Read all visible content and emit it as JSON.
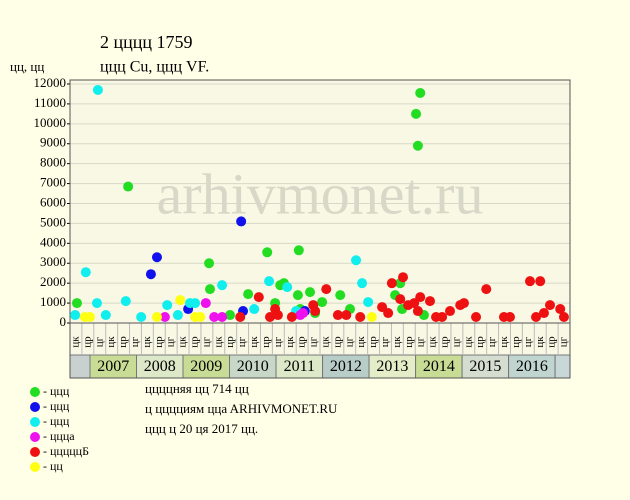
{
  "chart_data": {
    "type": "scatter",
    "title": "2 цццц 1759",
    "subtitle": "ццц Cu, ццц VF.",
    "y_label": "цц, цц",
    "watermark": "arhivmonet.ru",
    "xlim": [
      2006.57,
      2017.32
    ],
    "ylim": [
      0,
      12200
    ],
    "yticks": [
      0,
      1000,
      2000,
      3000,
      4000,
      5000,
      6000,
      7000,
      8000,
      9000,
      10000,
      11000,
      12000
    ],
    "grid": true,
    "years": [
      "2007",
      "2008",
      "2009",
      "2010",
      "2011",
      "2012",
      "2013",
      "2014",
      "2015",
      "2016"
    ],
    "year_colors": [
      "#c8dc96",
      "#dde8c8",
      "#c8dc96",
      "#c8d8c8",
      "#dde8c8",
      "#b8ccc8",
      "#e4ecc8",
      "#c8dc96",
      "#d4ddd0",
      "#c0d4d0"
    ],
    "sublabels": [
      "цк",
      "цр",
      "цг",
      "цк",
      "цр",
      "цг",
      "цк",
      "цр",
      "цг",
      "цк",
      "цр",
      "цг",
      "цк",
      "цр",
      "цг",
      "цк",
      "цр",
      "цг",
      "цк",
      "цр",
      "цг",
      "цк",
      "цр",
      "цг",
      "цк",
      "цр",
      "цг",
      "цк",
      "цр",
      "цг",
      "цк",
      "цр",
      "цг",
      "цк",
      "цр",
      "цг",
      "цк",
      "цр",
      "цг",
      "цк",
      "цр",
      "цг"
    ],
    "series": [
      {
        "name": "- ццц",
        "color": "#22dd22",
        "x": [
          2006.72,
          2007.82,
          2009.56,
          2009.58,
          2010.4,
          2010.81,
          2010.98,
          2011.09,
          2011.17,
          2011.47,
          2011.49,
          2011.73,
          2011.99,
          2012.38,
          2012.59,
          2013.56,
          2013.67,
          2013.71,
          2014.01,
          2014.05,
          2014.1,
          2014.18,
          2010.01,
          2011.52,
          2011.84
        ],
        "values": [
          1000,
          6850,
          3000,
          1700,
          1450,
          3550,
          1000,
          1900,
          2000,
          1400,
          3650,
          1550,
          1050,
          1400,
          700,
          1400,
          2000,
          700,
          10500,
          8900,
          11550,
          400,
          400,
          700,
          500
        ]
      },
      {
        "name": "- ццц",
        "color": "#1111ee",
        "x": [
          2008.31,
          2008.44,
          2009.11,
          2010.25,
          2010.29,
          2011.62
        ],
        "values": [
          2450,
          3300,
          700,
          5100,
          600,
          600
        ]
      },
      {
        "name": "- ццц",
        "color": "#11eeee",
        "x": [
          2006.68,
          2007.17,
          2006.91,
          2007.15,
          2007.77,
          2007.34,
          2008.66,
          2008.89,
          2009.15,
          2009.26,
          2009.84,
          2010.85,
          2011.24,
          2011.43,
          2012.72,
          2012.85,
          2012.98,
          2010.53,
          2008.1
        ],
        "values": [
          400,
          11700,
          2550,
          1000,
          1100,
          400,
          900,
          400,
          1000,
          1000,
          1900,
          2100,
          1800,
          600,
          3150,
          2000,
          1050,
          700,
          300
        ]
      },
      {
        "name": "- ццца",
        "color": "#ee11ee",
        "x": [
          2008.61,
          2009.49,
          2009.67,
          2009.84,
          2011.52,
          2011.58
        ],
        "values": [
          300,
          1000,
          300,
          300,
          400,
          500
        ]
      },
      {
        "name": "- цццццБ",
        "color": "#ee1111",
        "x": [
          2010.23,
          2010.63,
          2010.87,
          2010.98,
          2011.04,
          2011.34,
          2011.8,
          2011.84,
          2012.08,
          2012.33,
          2012.51,
          2012.81,
          2013.28,
          2013.41,
          2013.49,
          2013.67,
          2013.73,
          2013.84,
          2013.97,
          2014.05,
          2014.1,
          2014.31,
          2014.44,
          2014.57,
          2014.74,
          2014.96,
          2015.04,
          2015.3,
          2015.52,
          2015.9,
          2016.03,
          2016.46,
          2016.59,
          2016.68,
          2016.76,
          2016.89,
          2017.11,
          2017.19
        ],
        "values": [
          300,
          1300,
          300,
          700,
          400,
          300,
          900,
          600,
          1700,
          400,
          400,
          300,
          800,
          500,
          2000,
          1200,
          2300,
          900,
          1000,
          600,
          1300,
          1100,
          300,
          300,
          600,
          900,
          1000,
          300,
          1700,
          300,
          300,
          2100,
          300,
          2100,
          500,
          900,
          700,
          300
        ]
      },
      {
        "name": "- цц",
        "color": "#ffff11",
        "x": [
          2006.89,
          2007.0,
          2008.94,
          2008.44,
          2009.26,
          2009.37,
          2013.06
        ],
        "values": [
          300,
          300,
          1150,
          300,
          300,
          300,
          300
        ]
      }
    ],
    "notes": [
      "ццццняя цц 714 цц",
      "ц цццциям ццa ARHIVMONET.RU",
      "ццц ц 20 ця 2017 цц."
    ]
  }
}
